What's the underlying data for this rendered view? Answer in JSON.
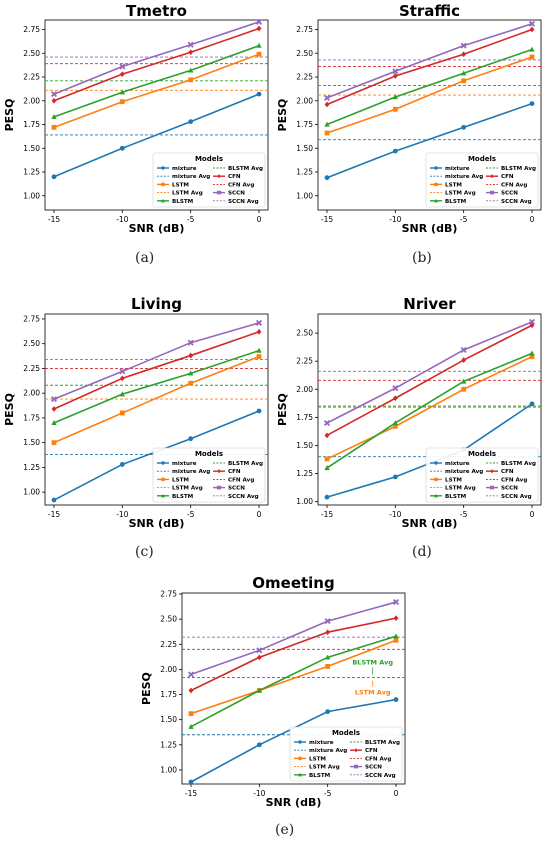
{
  "chart_data": [
    {
      "type": "line",
      "title": "Tmetro",
      "caption": "(a)",
      "xlabel": "SNR (dB)",
      "ylabel": "PESQ",
      "x": [
        -15,
        -10,
        -5,
        0
      ],
      "xticks": [
        "-15",
        "-10",
        "-5",
        "0"
      ],
      "ylim": [
        0.85,
        2.85
      ],
      "yticks": [
        "1.00",
        "1.25",
        "1.50",
        "1.75",
        "2.00",
        "2.25",
        "2.50",
        "2.75"
      ],
      "legend_title": "Models",
      "legend_position": "lower-right",
      "series": [
        {
          "name": "mixture",
          "avg_name": "mixture Avg",
          "color": "#1f77b4",
          "marker": "circle",
          "values": [
            1.2,
            1.5,
            1.78,
            2.07
          ],
          "avg": 1.64
        },
        {
          "name": "LSTM",
          "avg_name": "LSTM Avg",
          "color": "#ff7f0e",
          "marker": "square",
          "values": [
            1.72,
            1.99,
            2.22,
            2.49
          ],
          "avg": 2.11
        },
        {
          "name": "BLSTM",
          "avg_name": "BLSTM Avg",
          "color": "#2ca02c",
          "marker": "triangle",
          "values": [
            1.83,
            2.09,
            2.32,
            2.58
          ],
          "avg": 2.21
        },
        {
          "name": "CFN",
          "avg_name": "CFN Avg",
          "color": "#d62728",
          "marker": "diamond",
          "values": [
            2.0,
            2.28,
            2.51,
            2.76
          ],
          "avg": 2.39
        },
        {
          "name": "SCCN",
          "avg_name": "SCCN Avg",
          "color": "#9467bd",
          "marker": "x",
          "values": [
            2.07,
            2.36,
            2.59,
            2.83
          ],
          "avg": 2.46
        }
      ]
    },
    {
      "type": "line",
      "title": "Straffic",
      "caption": "(b)",
      "xlabel": "SNR (dB)",
      "ylabel": "PESQ",
      "x": [
        -15,
        -10,
        -5,
        0
      ],
      "xticks": [
        "-15",
        "-10",
        "-5",
        "0"
      ],
      "ylim": [
        0.85,
        2.85
      ],
      "yticks": [
        "1.00",
        "1.25",
        "1.50",
        "1.75",
        "2.00",
        "2.25",
        "2.50",
        "2.75"
      ],
      "legend_title": "Models",
      "legend_position": "lower-right",
      "series": [
        {
          "name": "mixture",
          "avg_name": "mixture Avg",
          "color": "#1f77b4",
          "marker": "circle",
          "values": [
            1.19,
            1.47,
            1.72,
            1.97
          ],
          "avg": 1.59
        },
        {
          "name": "LSTM",
          "avg_name": "LSTM Avg",
          "color": "#ff7f0e",
          "marker": "square",
          "values": [
            1.66,
            1.91,
            2.21,
            2.46
          ],
          "avg": 2.06
        },
        {
          "name": "BLSTM",
          "avg_name": "BLSTM Avg",
          "color": "#2ca02c",
          "marker": "triangle",
          "values": [
            1.75,
            2.04,
            2.29,
            2.54
          ],
          "avg": 2.16
        },
        {
          "name": "CFN",
          "avg_name": "CFN Avg",
          "color": "#d62728",
          "marker": "diamond",
          "values": [
            1.96,
            2.26,
            2.49,
            2.75
          ],
          "avg": 2.36
        },
        {
          "name": "SCCN",
          "avg_name": "SCCN Avg",
          "color": "#9467bd",
          "marker": "x",
          "values": [
            2.03,
            2.31,
            2.58,
            2.81
          ],
          "avg": 2.43
        }
      ]
    },
    {
      "type": "line",
      "title": "Living",
      "caption": "(c)",
      "xlabel": "SNR (dB)",
      "ylabel": "PESQ",
      "x": [
        -15,
        -10,
        -5,
        0
      ],
      "xticks": [
        "-15",
        "-10",
        "-5",
        "0"
      ],
      "ylim": [
        0.87,
        2.8
      ],
      "yticks": [
        "1.00",
        "1.25",
        "1.50",
        "1.75",
        "2.00",
        "2.25",
        "2.50",
        "2.75"
      ],
      "legend_title": "Models",
      "legend_position": "lower-right",
      "series": [
        {
          "name": "mixture",
          "avg_name": "mixture Avg",
          "color": "#1f77b4",
          "marker": "circle",
          "values": [
            0.92,
            1.28,
            1.54,
            1.82
          ],
          "avg": 1.38
        },
        {
          "name": "LSTM",
          "avg_name": "LSTM Avg",
          "color": "#ff7f0e",
          "marker": "square",
          "values": [
            1.5,
            1.8,
            2.1,
            2.37
          ],
          "avg": 1.94
        },
        {
          "name": "BLSTM",
          "avg_name": "BLSTM Avg",
          "color": "#2ca02c",
          "marker": "triangle",
          "values": [
            1.7,
            1.99,
            2.2,
            2.43
          ],
          "avg": 2.08
        },
        {
          "name": "CFN",
          "avg_name": "CFN Avg",
          "color": "#d62728",
          "marker": "diamond",
          "values": [
            1.84,
            2.15,
            2.38,
            2.62
          ],
          "avg": 2.25
        },
        {
          "name": "SCCN",
          "avg_name": "SCCN Avg",
          "color": "#9467bd",
          "marker": "x",
          "values": [
            1.94,
            2.22,
            2.51,
            2.71
          ],
          "avg": 2.34
        }
      ]
    },
    {
      "type": "line",
      "title": "Nriver",
      "caption": "(d)",
      "xlabel": "SNR (dB)",
      "ylabel": "PESQ",
      "x": [
        -15,
        -10,
        -5,
        0
      ],
      "xticks": [
        "-15",
        "-10",
        "-5",
        "0"
      ],
      "ylim": [
        0.97,
        2.67
      ],
      "yticks": [
        "1.00",
        "1.25",
        "1.50",
        "1.75",
        "2.00",
        "2.25",
        "2.50"
      ],
      "legend_title": "Models",
      "legend_position": "lower-right",
      "series": [
        {
          "name": "mixture",
          "avg_name": "mixture Avg",
          "color": "#1f77b4",
          "marker": "circle",
          "values": [
            1.04,
            1.22,
            1.46,
            1.87
          ],
          "avg": 1.4
        },
        {
          "name": "LSTM",
          "avg_name": "LSTM Avg",
          "color": "#ff7f0e",
          "marker": "square",
          "values": [
            1.38,
            1.67,
            2.0,
            2.29
          ],
          "avg": 1.84
        },
        {
          "name": "BLSTM",
          "avg_name": "BLSTM Avg",
          "color": "#2ca02c",
          "marker": "triangle",
          "values": [
            1.3,
            1.7,
            2.07,
            2.32
          ],
          "avg": 1.85
        },
        {
          "name": "CFN",
          "avg_name": "CFN Avg",
          "color": "#d62728",
          "marker": "diamond",
          "values": [
            1.59,
            1.92,
            2.26,
            2.57
          ],
          "avg": 2.08
        },
        {
          "name": "SCCN",
          "avg_name": "SCCN Avg",
          "color": "#9467bd",
          "marker": "x",
          "values": [
            1.7,
            2.01,
            2.35,
            2.6
          ],
          "avg": 2.16
        }
      ]
    },
    {
      "type": "line",
      "title": "Omeeting",
      "caption": "(e)",
      "xlabel": "SNR (dB)",
      "ylabel": "PESQ",
      "x": [
        -15,
        -10,
        -5,
        0
      ],
      "xticks": [
        "-15",
        "-10",
        "-5",
        "0"
      ],
      "ylim": [
        0.86,
        2.76
      ],
      "yticks": [
        "1.00",
        "1.25",
        "1.50",
        "1.75",
        "2.00",
        "2.25",
        "2.50",
        "2.75"
      ],
      "legend_title": "Models",
      "legend_position": "lower-right",
      "annotations": [
        {
          "text": "BLSTM Avg",
          "color": "#2ca02c"
        },
        {
          "text": "LSTM Avg",
          "color": "#ff7f0e"
        }
      ],
      "series": [
        {
          "name": "mixture",
          "avg_name": "mixture Avg",
          "color": "#1f77b4",
          "marker": "circle",
          "values": [
            0.88,
            1.25,
            1.58,
            1.7
          ],
          "avg": 1.35
        },
        {
          "name": "LSTM",
          "avg_name": "LSTM Avg",
          "color": "#ff7f0e",
          "marker": "square",
          "values": [
            1.56,
            1.79,
            2.03,
            2.29
          ],
          "avg": 1.92
        },
        {
          "name": "BLSTM",
          "avg_name": "BLSTM Avg",
          "color": "#2ca02c",
          "marker": "triangle",
          "values": [
            1.43,
            1.79,
            2.12,
            2.33
          ],
          "avg": 1.92
        },
        {
          "name": "CFN",
          "avg_name": "CFN Avg",
          "color": "#d62728",
          "marker": "diamond",
          "values": [
            1.79,
            2.12,
            2.37,
            2.51
          ],
          "avg": 2.2
        },
        {
          "name": "SCCN",
          "avg_name": "SCCN Avg",
          "color": "#9467bd",
          "marker": "x",
          "values": [
            1.95,
            2.19,
            2.48,
            2.67
          ],
          "avg": 2.32
        }
      ]
    }
  ]
}
